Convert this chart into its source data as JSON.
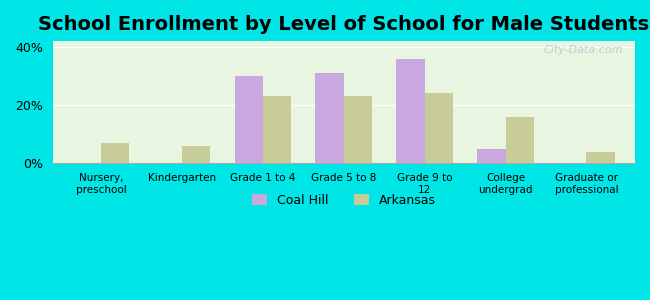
{
  "title": "School Enrollment by Level of School for Male Students",
  "categories": [
    "Nursery,\npreschool",
    "Kindergarten",
    "Grade 1 to 4",
    "Grade 5 to 8",
    "Grade 9 to\n12",
    "College\nundergrad",
    "Graduate or\nprofessional"
  ],
  "coal_hill": [
    0,
    0,
    30.0,
    31.0,
    36.0,
    5.0,
    0
  ],
  "arkansas": [
    7.0,
    6.0,
    23.0,
    23.0,
    24.0,
    16.0,
    4.0
  ],
  "coal_hill_color": "#c9a8e0",
  "arkansas_color": "#c8cc98",
  "background_color": "#00e5e5",
  "plot_bg_start": "#e8f5e0",
  "plot_bg_end": "#fffdf5",
  "ylim": [
    0,
    42
  ],
  "yticks": [
    0,
    20,
    40
  ],
  "ytick_labels": [
    "0%",
    "20%",
    "40%"
  ],
  "bar_width": 0.35,
  "title_fontsize": 14,
  "legend_coal_hill": "Coal Hill",
  "legend_arkansas": "Arkansas",
  "watermark": "City-Data.com"
}
